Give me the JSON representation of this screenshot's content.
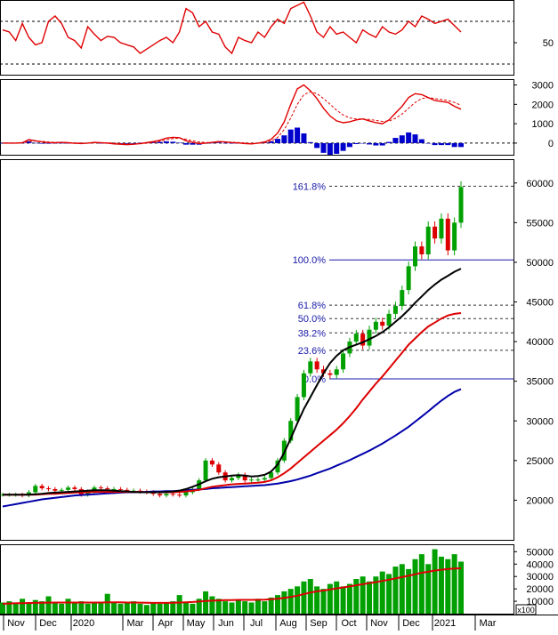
{
  "colors": {
    "rsi": "#e00000",
    "macd_line": "#e00000",
    "macd_signal": "#e00000",
    "macd_hist": "#0000cc",
    "ma_short": "#000000",
    "ma_mid": "#dd0000",
    "ma_long": "#0000aa",
    "candle_up": "#00a000",
    "candle_down": "#dd0000",
    "fib_line": "#1a1aa8",
    "volume_bar": "#00a000",
    "volume_ma": "#dd0000",
    "frame": "#000000",
    "ref_line": "#000000"
  },
  "chart_data": [
    {
      "type": "line",
      "panel": "rsi",
      "y_tick_labels": [
        "50"
      ],
      "y_ticks": [
        50
      ],
      "ylim": [
        20,
        90
      ],
      "ref_lines": [
        70,
        30
      ],
      "series": [
        {
          "values": [
            62,
            60,
            52,
            68,
            55,
            48,
            50,
            70,
            75,
            68,
            55,
            52,
            45,
            65,
            58,
            52,
            56,
            55,
            50,
            48,
            46,
            40,
            44,
            48,
            52,
            55,
            50,
            60,
            82,
            78,
            65,
            70,
            60,
            58,
            46,
            40,
            55,
            52,
            50,
            60,
            55,
            65,
            72,
            68,
            82,
            85,
            88,
            75,
            60,
            55,
            65,
            58,
            60,
            55,
            50,
            62,
            58,
            55,
            65,
            60,
            58,
            62,
            70,
            65,
            75,
            72,
            68,
            70,
            72,
            66,
            60
          ]
        }
      ]
    },
    {
      "type": "line",
      "panel": "macd",
      "y_tick_labels": [
        "3000",
        "2000",
        "1000",
        "0"
      ],
      "y_ticks": [
        3000,
        2000,
        1000,
        0
      ],
      "ylim": [
        -600,
        3300
      ],
      "ref_lines": [
        0
      ],
      "series": [
        {
          "values": [
            0,
            0,
            0,
            20,
            180,
            120,
            60,
            30,
            20,
            40,
            20,
            -10,
            -20,
            0,
            40,
            20,
            0,
            -40,
            -60,
            -80,
            -60,
            -20,
            30,
            80,
            150,
            260,
            300,
            280,
            120,
            40,
            -20,
            0,
            40,
            80,
            60,
            30,
            10,
            -20,
            -40,
            0,
            60,
            200,
            520,
            1100,
            2000,
            2800,
            3000,
            2700,
            2300,
            1800,
            1400,
            1150,
            1050,
            1100,
            1200,
            1250,
            1150,
            1050,
            1000,
            1200,
            1550,
            1900,
            2350,
            2550,
            2500,
            2350,
            2200,
            2150,
            2100,
            1900,
            1750
          ]
        },
        {
          "values": [
            0,
            0,
            0,
            10,
            80,
            110,
            90,
            60,
            40,
            35,
            30,
            15,
            0,
            -5,
            15,
            20,
            15,
            0,
            -20,
            -40,
            -50,
            -40,
            -10,
            30,
            90,
            170,
            230,
            260,
            200,
            120,
            60,
            30,
            30,
            50,
            55,
            45,
            30,
            10,
            -10,
            -10,
            20,
            100,
            300,
            700,
            1300,
            2000,
            2500,
            2650,
            2550,
            2300,
            2000,
            1700,
            1450,
            1300,
            1250,
            1250,
            1220,
            1170,
            1120,
            1140,
            1280,
            1500,
            1800,
            2100,
            2300,
            2350,
            2300,
            2250,
            2200,
            2100,
            1950
          ]
        },
        {
          "values": [
            0,
            0,
            0,
            10,
            100,
            10,
            -30,
            -30,
            -20,
            5,
            -10,
            -25,
            -20,
            5,
            25,
            0,
            -15,
            -40,
            -40,
            -40,
            -10,
            20,
            40,
            50,
            60,
            90,
            70,
            20,
            -80,
            -80,
            -80,
            -30,
            10,
            30,
            5,
            -15,
            -20,
            -30,
            -30,
            10,
            40,
            100,
            220,
            400,
            700,
            800,
            500,
            50,
            -250,
            -500,
            -600,
            -550,
            -400,
            -200,
            -50,
            0,
            -70,
            -120,
            -120,
            60,
            270,
            400,
            550,
            450,
            200,
            0,
            -100,
            -100,
            -100,
            -200,
            -200
          ]
        }
      ]
    },
    {
      "type": "line",
      "panel": "price",
      "y_tick_labels": [
        "60000",
        "55000",
        "50000",
        "45000",
        "40000",
        "35000",
        "30000",
        "25000",
        "20000"
      ],
      "y_ticks": [
        60000,
        55000,
        50000,
        45000,
        40000,
        35000,
        30000,
        25000,
        20000
      ],
      "ylim": [
        15000,
        63000
      ],
      "fib_levels": [
        {
          "label": "161.8%",
          "value": 59600
        },
        {
          "label": "100.0%",
          "value": 50300
        },
        {
          "label": "61.8%",
          "value": 44600
        },
        {
          "label": "50.0%",
          "value": 42900
        },
        {
          "label": "38.2%",
          "value": 41100
        },
        {
          "label": "23.6%",
          "value": 38900
        },
        {
          "label": "0.0%",
          "value": 35300
        }
      ],
      "close": [
        20700,
        20700,
        20700,
        20600,
        21000,
        21800,
        21500,
        21400,
        21200,
        21300,
        21600,
        21400,
        20700,
        21100,
        21600,
        21500,
        21400,
        21400,
        21300,
        21200,
        21200,
        21100,
        21000,
        20800,
        20600,
        20800,
        20700,
        20600,
        21000,
        21400,
        22500,
        25000,
        24500,
        23500,
        22500,
        22800,
        23200,
        22500,
        22600,
        22600,
        22800,
        23500,
        25000,
        27500,
        30000,
        33000,
        36000,
        37500,
        36500,
        36000,
        35800,
        36500,
        38500,
        40000,
        41000,
        39500,
        41500,
        42500,
        42000,
        43500,
        44500,
        46500,
        49500,
        52000,
        51000,
        54500,
        53000,
        55500,
        51500,
        55000,
        59500
      ],
      "ma_short": [
        20700,
        20700,
        20700,
        20700,
        20700,
        20750,
        20800,
        20900,
        20950,
        21000,
        21050,
        21100,
        21150,
        21200,
        21250,
        21250,
        21250,
        21200,
        21150,
        21100,
        21050,
        21000,
        21000,
        21000,
        21000,
        21050,
        21100,
        21200,
        21400,
        21700,
        22000,
        22400,
        22700,
        22900,
        23000,
        23100,
        23150,
        23100,
        23000,
        23050,
        23200,
        23600,
        24500,
        26000,
        27800,
        29700,
        31500,
        33000,
        34500,
        36000,
        37300,
        38200,
        38900,
        39300,
        39600,
        39900,
        40300,
        40700,
        41200,
        41800,
        42500,
        43200,
        44000,
        44900,
        45700,
        46500,
        47200,
        47800,
        48300,
        48800,
        49200
      ],
      "ma_mid": [
        20700,
        20700,
        20700,
        20700,
        20700,
        20700,
        20750,
        20800,
        20800,
        20850,
        20900,
        20950,
        21000,
        21000,
        21050,
        21050,
        21050,
        21050,
        21050,
        21050,
        21050,
        21050,
        21000,
        21000,
        21000,
        21000,
        21000,
        21050,
        21100,
        21200,
        21300,
        21500,
        21700,
        21800,
        21900,
        22000,
        22050,
        22100,
        22150,
        22200,
        22300,
        22500,
        22900,
        23400,
        24000,
        24700,
        25400,
        26100,
        26800,
        27500,
        28200,
        28900,
        29700,
        30600,
        31600,
        32700,
        33700,
        34700,
        35600,
        36600,
        37600,
        38600,
        39600,
        40400,
        41200,
        41900,
        42400,
        42900,
        43300,
        43500,
        43600
      ],
      "ma_long": [
        19200,
        19350,
        19500,
        19650,
        19800,
        19950,
        20100,
        20200,
        20300,
        20400,
        20500,
        20600,
        20650,
        20700,
        20750,
        20800,
        20850,
        20900,
        20950,
        21000,
        21000,
        21050,
        21050,
        21100,
        21100,
        21150,
        21150,
        21200,
        21250,
        21300,
        21350,
        21400,
        21500,
        21550,
        21600,
        21650,
        21700,
        21750,
        21800,
        21850,
        21900,
        22000,
        22100,
        22250,
        22400,
        22600,
        22850,
        23100,
        23400,
        23700,
        24000,
        24350,
        24700,
        25050,
        25450,
        25850,
        26250,
        26700,
        27150,
        27650,
        28150,
        28700,
        29250,
        29900,
        30550,
        31200,
        31900,
        32550,
        33150,
        33650,
        34000
      ]
    },
    {
      "type": "bar",
      "panel": "volume",
      "y_tick_labels": [
        "50000",
        "40000",
        "30000",
        "20000",
        "10000"
      ],
      "y_ticks": [
        50000,
        40000,
        30000,
        20000,
        10000
      ],
      "ylim": [
        0,
        56000
      ],
      "unit_label": "x100",
      "values": [
        9000,
        10000,
        8000,
        12000,
        9000,
        11000,
        10000,
        14000,
        9000,
        8000,
        12000,
        9000,
        10000,
        8000,
        8500,
        9000,
        16000,
        9000,
        8000,
        9000,
        10000,
        8000,
        7000,
        9000,
        8000,
        9000,
        10000,
        15000,
        9000,
        8000,
        12000,
        18000,
        14000,
        12000,
        10000,
        9000,
        11000,
        10000,
        9000,
        12000,
        10000,
        13000,
        15000,
        18000,
        20000,
        22000,
        26000,
        28000,
        22000,
        20000,
        24000,
        26000,
        22000,
        24000,
        28000,
        30000,
        26000,
        30000,
        34000,
        32000,
        38000,
        40000,
        36000,
        44000,
        48000,
        40000,
        52000,
        46000,
        44000,
        48000,
        42000
      ],
      "ma": [
        8000,
        8200,
        8400,
        8500,
        8600,
        8700,
        8800,
        8900,
        9000,
        9000,
        9000,
        9000,
        9000,
        9000,
        9000,
        9000,
        9100,
        9100,
        9100,
        9000,
        9000,
        8900,
        8800,
        8700,
        8700,
        8700,
        8800,
        9000,
        9200,
        9400,
        9800,
        10200,
        10500,
        10700,
        10900,
        11000,
        11100,
        11100,
        11100,
        11200,
        11300,
        11600,
        12000,
        12700,
        13500,
        14500,
        15800,
        17000,
        18000,
        18700,
        19500,
        20400,
        21200,
        22000,
        22900,
        23800,
        24600,
        25500,
        26400,
        27400,
        28400,
        29500,
        30600,
        31800,
        33000,
        33800,
        34800,
        35500,
        36000,
        36400,
        36600
      ]
    }
  ],
  "x_axis": {
    "labels": [
      "Nov",
      "Dec",
      "2020",
      "Mar",
      "Apr",
      "May",
      "Jun",
      "Jul",
      "Aug",
      "Sep",
      "Oct",
      "Nov",
      "Dec",
      "2021",
      "Mar"
    ]
  }
}
